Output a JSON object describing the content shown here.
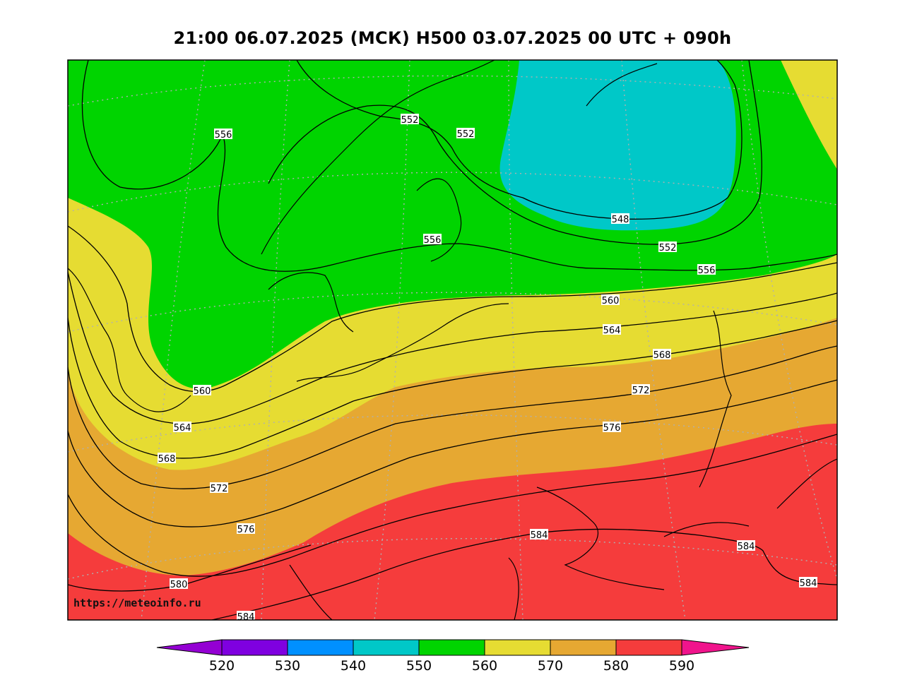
{
  "title": "21:00 06.07.2025 (МСК) H500  03.07.2025 00 UTC + 090h",
  "watermark": "https://meteoinfo.ru",
  "contour_labels": [
    "552",
    "552",
    "556",
    "556",
    "548",
    "552",
    "556",
    "560",
    "564",
    "568",
    "572",
    "576",
    "560",
    "564",
    "568",
    "572",
    "576",
    "580",
    "584",
    "584",
    "584",
    "584"
  ],
  "colorbar": {
    "ticks": [
      "520",
      "530",
      "540",
      "550",
      "560",
      "570",
      "580",
      "590"
    ],
    "colors": [
      "#9400d3",
      "#7f00e0",
      "#0090ff",
      "#00c8c8",
      "#00d400",
      "#e6dc32",
      "#e6a832",
      "#f53c3c",
      "#f0148c"
    ]
  },
  "fill_colors": {
    "green_550_560": "#00d400",
    "cyan_540_550": "#00c8c8",
    "yellow_560_570": "#e6dc32",
    "orange_570_580": "#e6a832",
    "red_580_590": "#f53c3c"
  }
}
